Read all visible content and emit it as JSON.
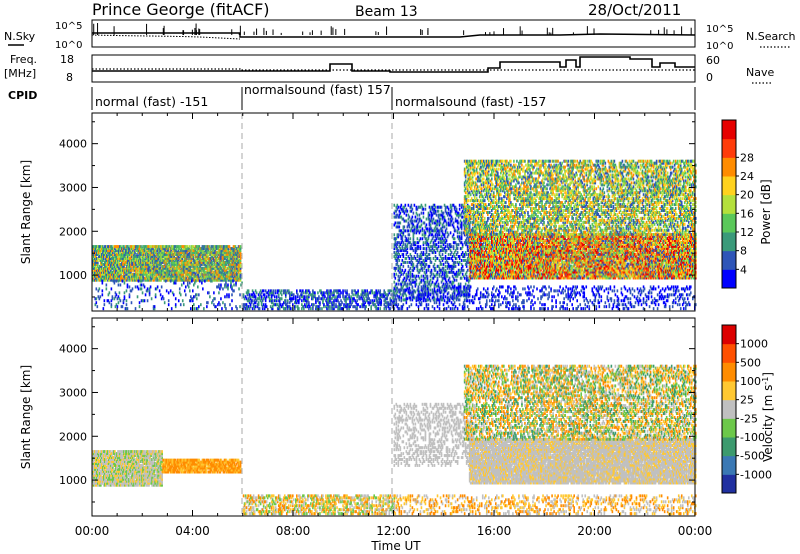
{
  "header": {
    "title": "Prince George (fitACF)",
    "beam": "Beam 13",
    "date": "28/Oct/2011"
  },
  "aux_labels": {
    "nsky": "N.Sky",
    "nsearch": "N.Search",
    "freq_line1": "Freq.",
    "freq_line2": "[MHz]",
    "nave": "Nave",
    "cpid": "CPID"
  },
  "noise_panel": {
    "left_ticks": [
      "10^5",
      "10^0"
    ],
    "right_ticks": [
      "10^5",
      "10^0"
    ]
  },
  "freq_panel": {
    "left_ticks": [
      "18",
      "8"
    ],
    "right_ticks": [
      "60",
      "0"
    ]
  },
  "cpid_segments": [
    {
      "label": "normal (fast) -151",
      "start_h": 0,
      "end_h": 6
    },
    {
      "label": "normalsound (fast) 157",
      "start_h": 6,
      "end_h": 12
    },
    {
      "label": "normalsound (fast) -157",
      "start_h": 12,
      "end_h": 24
    }
  ],
  "chart_data": [
    {
      "type": "heatmap",
      "name": "power",
      "ylabel": "Slant Range [km]",
      "yticks": [
        1000,
        2000,
        3000,
        4000
      ],
      "ylim": [
        180,
        4700
      ],
      "colorbar_label": "Power [dB]",
      "colorbar_ticks": [
        "4",
        "8",
        "12",
        "16",
        "20",
        "24",
        "28"
      ],
      "colorbar_colors": [
        "#0000ff",
        "#2e55b8",
        "#3a9a7a",
        "#5ac85a",
        "#b4e03c",
        "#ffd21e",
        "#ff8c00",
        "#ff3c0a",
        "#e60000"
      ]
    },
    {
      "type": "heatmap",
      "name": "velocity",
      "ylabel": "Slant Range [km]",
      "yticks": [
        1000,
        2000,
        3000,
        4000
      ],
      "ylim": [
        180,
        4700
      ],
      "colorbar_label": "Velocity [m s^-1]",
      "colorbar_ticks": [
        "1000",
        "500",
        "100",
        "25",
        "-25",
        "-100",
        "-500",
        "-1000"
      ],
      "colorbar_colors": [
        "#2030a0",
        "#3a78b4",
        "#3c9a6e",
        "#6cc84a",
        "#c0c0c0",
        "#ffc832",
        "#ff8c00",
        "#ff5000",
        "#dc0000"
      ]
    }
  ],
  "xaxis": {
    "label": "Time UT",
    "ticks": [
      "00:00",
      "04:00",
      "08:00",
      "12:00",
      "16:00",
      "20:00",
      "00:00"
    ]
  },
  "scatter_regions_power": [
    {
      "t0": 0.0,
      "t1": 5.9,
      "r0": 850,
      "r1": 1650,
      "density": 0.9,
      "colors": [
        "#2e55b8",
        "#3a9a7a",
        "#5ac85a",
        "#b4e03c",
        "#ff8c00"
      ]
    },
    {
      "t0": 0.1,
      "t1": 6.0,
      "r0": 200,
      "r1": 850,
      "density": 0.12,
      "colors": [
        "#2e55b8",
        "#3a9a7a",
        "#0000ff"
      ]
    },
    {
      "t0": 6.0,
      "t1": 12.0,
      "r0": 200,
      "r1": 650,
      "density": 0.45,
      "colors": [
        "#0000ff",
        "#2e55b8",
        "#3a9a7a"
      ]
    },
    {
      "t0": 12.0,
      "t1": 15.0,
      "r0": 400,
      "r1": 2600,
      "density": 0.35,
      "colors": [
        "#0000ff",
        "#2e55b8",
        "#3a9a7a"
      ]
    },
    {
      "t0": 15.0,
      "t1": 24.0,
      "r0": 900,
      "r1": 1900,
      "density": 0.85,
      "colors": [
        "#2e55b8",
        "#5ac85a",
        "#b4e03c",
        "#ffd21e",
        "#ff8c00",
        "#ff3c0a",
        "#e60000"
      ]
    },
    {
      "t0": 14.8,
      "t1": 24.0,
      "r0": 1900,
      "r1": 3600,
      "density": 0.5,
      "colors": [
        "#2e55b8",
        "#5ac85a",
        "#b4e03c",
        "#ffd21e",
        "#ff8c00",
        "#3a9a7a"
      ]
    },
    {
      "t0": 12.0,
      "t1": 24.0,
      "r0": 200,
      "r1": 700,
      "density": 0.2,
      "colors": [
        "#0000ff",
        "#2e55b8"
      ]
    }
  ],
  "scatter_regions_velocity": [
    {
      "t0": 0.0,
      "t1": 2.8,
      "r0": 850,
      "r1": 1650,
      "density": 0.9,
      "colors": [
        "#c0c0c0",
        "#c0c0c0",
        "#ffc832",
        "#6cc84a"
      ]
    },
    {
      "t0": 2.8,
      "t1": 5.9,
      "r0": 1150,
      "r1": 1450,
      "density": 0.85,
      "colors": [
        "#ff8c00",
        "#ffc832",
        "#ff8c00"
      ]
    },
    {
      "t0": 6.0,
      "t1": 12.0,
      "r0": 200,
      "r1": 650,
      "density": 0.45,
      "colors": [
        "#ffc832",
        "#c0c0c0",
        "#ff8c00",
        "#6cc84a"
      ]
    },
    {
      "t0": 12.0,
      "t1": 15.2,
      "r0": 1300,
      "r1": 2700,
      "density": 0.3,
      "colors": [
        "#c0c0c0"
      ]
    },
    {
      "t0": 15.0,
      "t1": 24.0,
      "r0": 900,
      "r1": 1900,
      "density": 0.9,
      "colors": [
        "#c0c0c0",
        "#c0c0c0",
        "#c0c0c0",
        "#ffc832"
      ]
    },
    {
      "t0": 14.8,
      "t1": 24.0,
      "r0": 1900,
      "r1": 3600,
      "density": 0.45,
      "colors": [
        "#c0c0c0",
        "#ffc832",
        "#ff8c00",
        "#6cc84a",
        "#3c9a6e"
      ]
    },
    {
      "t0": 12.0,
      "t1": 24.0,
      "r0": 200,
      "r1": 650,
      "density": 0.25,
      "colors": [
        "#ffc832",
        "#c0c0c0",
        "#ff8c00"
      ]
    }
  ]
}
